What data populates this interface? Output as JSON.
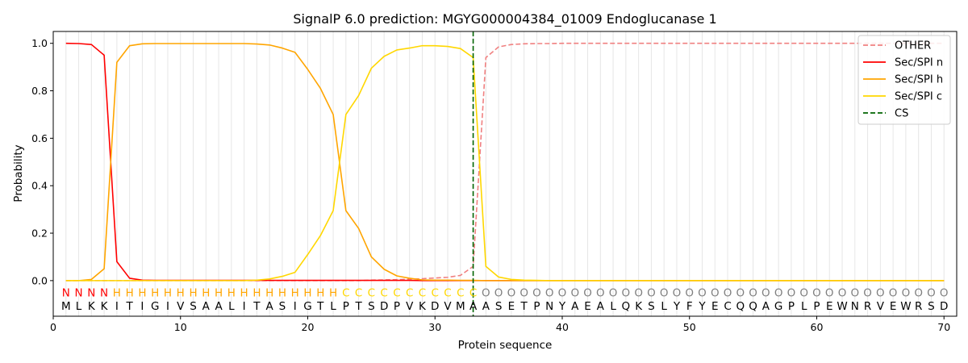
{
  "chart_data": {
    "type": "line",
    "title": "SignalP 6.0 prediction: MGYG000004384_01009 Endoglucanase 1",
    "xlabel": "Protein sequence",
    "ylabel": "Probability",
    "xlim": [
      0,
      71
    ],
    "ylim": [
      -0.15,
      1.05
    ],
    "xticks": [
      0,
      10,
      20,
      30,
      40,
      50,
      60,
      70
    ],
    "yticks": [
      0.0,
      0.2,
      0.4,
      0.6,
      0.8,
      1.0
    ],
    "ytick_labels": [
      "0.0",
      "0.2",
      "0.4",
      "0.6",
      "0.8",
      "1.0"
    ],
    "grid": "vertical lines at each residue",
    "legend_position": "top-right",
    "sequence": [
      "M",
      "L",
      "K",
      "K",
      "I",
      "T",
      "I",
      "G",
      "I",
      "V",
      "S",
      "A",
      "A",
      "L",
      "I",
      "T",
      "A",
      "S",
      "I",
      "G",
      "T",
      "L",
      "P",
      "T",
      "S",
      "D",
      "P",
      "V",
      "K",
      "D",
      "V",
      "M",
      "A",
      "A",
      "S",
      "E",
      "T",
      "P",
      "N",
      "Y",
      "A",
      "E",
      "A",
      "L",
      "Q",
      "K",
      "S",
      "L",
      "Y",
      "F",
      "Y",
      "E",
      "C",
      "Q",
      "Q",
      "A",
      "G",
      "P",
      "L",
      "P",
      "E",
      "W",
      "N",
      "R",
      "V",
      "E",
      "W",
      "R",
      "S",
      "D"
    ],
    "labels": [
      "N",
      "N",
      "N",
      "N",
      "H",
      "H",
      "H",
      "H",
      "H",
      "H",
      "H",
      "H",
      "H",
      "H",
      "H",
      "H",
      "H",
      "H",
      "H",
      "H",
      "H",
      "H",
      "C",
      "C",
      "C",
      "C",
      "C",
      "C",
      "C",
      "C",
      "C",
      "C",
      "C",
      "O",
      "O",
      "O",
      "O",
      "O",
      "O",
      "O",
      "O",
      "O",
      "O",
      "O",
      "O",
      "O",
      "O",
      "O",
      "O",
      "O",
      "O",
      "O",
      "O",
      "O",
      "O",
      "O",
      "O",
      "O",
      "O",
      "O",
      "O",
      "O",
      "O",
      "O",
      "O",
      "O",
      "O",
      "O",
      "O",
      "O"
    ],
    "label_colors": {
      "N": "#ff0000",
      "H": "#ffa500",
      "C": "#ffd700",
      "O": "#808080"
    },
    "cleavage_site": 33,
    "series": [
      {
        "name": "OTHER",
        "color": "#f08080",
        "dash": true,
        "values": [
          0,
          0,
          0,
          0,
          0,
          0,
          0,
          0,
          0,
          0,
          0,
          0,
          0,
          0,
          0,
          0,
          0,
          0,
          0,
          0,
          0,
          0,
          0,
          0,
          0.002,
          0.003,
          0.004,
          0.006,
          0.008,
          0.011,
          0.014,
          0.022,
          0.06,
          0.94,
          0.985,
          0.995,
          0.998,
          0.999,
          0.999,
          1,
          1,
          1,
          1,
          1,
          1,
          1,
          1,
          1,
          1,
          1,
          1,
          1,
          1,
          1,
          1,
          1,
          1,
          1,
          1,
          1,
          1,
          1,
          1,
          1,
          1,
          1,
          1,
          1,
          1,
          1
        ]
      },
      {
        "name": "Sec/SPI n",
        "color": "#ff0000",
        "dash": false,
        "values": [
          1.0,
          0.999,
          0.995,
          0.95,
          0.08,
          0.01,
          0.002,
          0.001,
          0.001,
          0.001,
          0.001,
          0.001,
          0.001,
          0.001,
          0.001,
          0.001,
          0.001,
          0.001,
          0.001,
          0.001,
          0.001,
          0.001,
          0.001,
          0.001,
          0.001,
          0.001,
          0.001,
          0.001,
          0,
          0,
          0,
          0,
          0,
          0,
          0,
          0,
          0,
          0,
          0,
          0,
          0,
          0,
          0,
          0,
          0,
          0,
          0,
          0,
          0,
          0,
          0,
          0,
          0,
          0,
          0,
          0,
          0,
          0,
          0,
          0,
          0,
          0,
          0,
          0,
          0,
          0,
          0,
          0,
          0,
          0
        ]
      },
      {
        "name": "Sec/SPI h",
        "color": "#ffa500",
        "dash": false,
        "values": [
          0,
          0,
          0.005,
          0.05,
          0.92,
          0.99,
          0.998,
          0.999,
          0.999,
          0.999,
          0.999,
          0.999,
          0.999,
          0.999,
          0.999,
          0.997,
          0.993,
          0.98,
          0.962,
          0.89,
          0.81,
          0.7,
          0.295,
          0.22,
          0.1,
          0.048,
          0.02,
          0.01,
          0.003,
          0.002,
          0.002,
          0.001,
          0.001,
          0,
          0,
          0,
          0,
          0,
          0,
          0,
          0,
          0,
          0,
          0,
          0,
          0,
          0,
          0,
          0,
          0,
          0,
          0,
          0,
          0,
          0,
          0,
          0,
          0,
          0,
          0,
          0,
          0,
          0,
          0,
          0,
          0,
          0,
          0,
          0,
          0
        ]
      },
      {
        "name": "Sec/SPI c",
        "color": "#ffd700",
        "dash": false,
        "values": [
          0,
          0,
          0,
          0,
          0,
          0,
          0,
          0,
          0,
          0,
          0,
          0,
          0,
          0,
          0,
          0.002,
          0.007,
          0.018,
          0.035,
          0.11,
          0.19,
          0.295,
          0.7,
          0.78,
          0.895,
          0.945,
          0.972,
          0.98,
          0.99,
          0.99,
          0.987,
          0.978,
          0.94,
          0.06,
          0.015,
          0.005,
          0.002,
          0.001,
          0,
          0,
          0,
          0,
          0,
          0,
          0,
          0,
          0,
          0,
          0,
          0,
          0,
          0,
          0,
          0,
          0,
          0,
          0,
          0,
          0,
          0,
          0,
          0,
          0,
          0,
          0,
          0,
          0,
          0,
          0,
          0
        ]
      }
    ],
    "legend": [
      {
        "name": "OTHER",
        "color": "#f08080",
        "dash": true
      },
      {
        "name": "Sec/SPI n",
        "color": "#ff0000",
        "dash": false
      },
      {
        "name": "Sec/SPI h",
        "color": "#ffa500",
        "dash": false
      },
      {
        "name": "Sec/SPI c",
        "color": "#ffd700",
        "dash": false
      },
      {
        "name": "CS",
        "color": "#006400",
        "dash": true
      }
    ]
  }
}
